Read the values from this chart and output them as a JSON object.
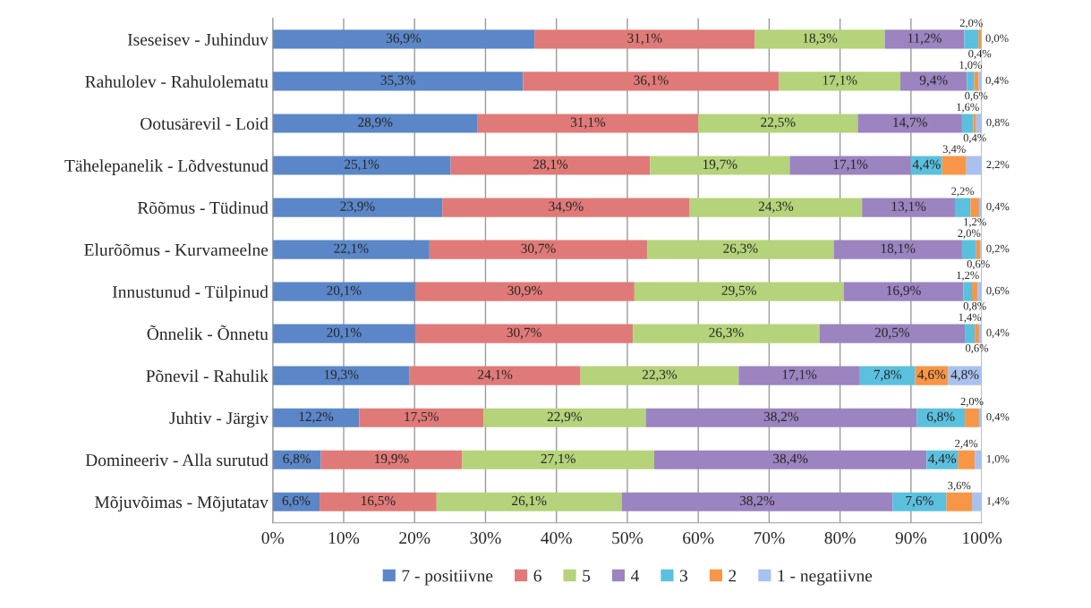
{
  "chart_data": {
    "type": "bar",
    "orientation": "horizontal",
    "stacked": true,
    "categories": [
      "Iseseisev - Juhinduv",
      "Rahulolev - Rahulolematu",
      "Ootusärevil - Loid",
      "Tähelepanelik - Lõdvestunud",
      "Rõõmus - Tüdinud",
      "Elurõõmus - Kurvameelne",
      "Innustunud - Tülpinud",
      "Õnnelik - Õnnetu",
      "Põnevil - Rahulik",
      "Juhtiv - Järgiv",
      "Domineeriv - Alla surutud",
      "Mõjuvõimas - Mõjutatav"
    ],
    "series": [
      {
        "name": "7 - positiivne",
        "color": "#5b87c8",
        "values": [
          36.9,
          35.3,
          28.9,
          25.1,
          23.9,
          22.1,
          20.1,
          20.1,
          19.3,
          12.2,
          6.8,
          6.6
        ],
        "value_labels": [
          "36,9%",
          "35,3%",
          "28,9%",
          "25,1%",
          "23,9%",
          "22,1%",
          "20,1%",
          "20,1%",
          "19,3%",
          "12,2%",
          "6,8%",
          "6,6%"
        ]
      },
      {
        "name": "6",
        "color": "#e07a78",
        "values": [
          31.1,
          36.1,
          31.1,
          28.1,
          34.9,
          30.7,
          30.9,
          30.7,
          24.1,
          17.5,
          19.9,
          16.5
        ],
        "value_labels": [
          "31,1%",
          "36,1%",
          "31,1%",
          "28,1%",
          "34,9%",
          "30,7%",
          "30,9%",
          "30,7%",
          "24,1%",
          "17,5%",
          "19,9%",
          "16,5%"
        ]
      },
      {
        "name": "5",
        "color": "#b5d37a",
        "values": [
          18.3,
          17.1,
          22.5,
          19.7,
          24.3,
          26.3,
          29.5,
          26.3,
          22.3,
          22.9,
          27.1,
          26.1
        ],
        "value_labels": [
          "18,3%",
          "17,1%",
          "22,5%",
          "19,7%",
          "24,3%",
          "26,3%",
          "29,5%",
          "26,3%",
          "22,3%",
          "22,9%",
          "27,1%",
          "26,1%"
        ]
      },
      {
        "name": "4",
        "color": "#9b84c0",
        "values": [
          11.2,
          9.4,
          14.7,
          17.1,
          13.1,
          18.1,
          16.9,
          20.5,
          17.1,
          38.2,
          38.4,
          38.2
        ],
        "value_labels": [
          "11,2%",
          "9,4%",
          "14,7%",
          "17,1%",
          "13,1%",
          "18,1%",
          "16,9%",
          "20,5%",
          "17,1%",
          "38,2%",
          "38,4%",
          "38,2%"
        ]
      },
      {
        "name": "3",
        "color": "#5bc0de",
        "values": [
          2.0,
          1.0,
          1.6,
          4.4,
          2.2,
          2.0,
          1.2,
          1.4,
          7.8,
          6.8,
          4.4,
          7.6
        ],
        "value_labels": [
          "2,0%",
          "1,0%",
          "1,6%",
          "4,4%",
          "2,2%",
          "2,0%",
          "1,2%",
          "1,4%",
          "7,8%",
          "6,8%",
          "4,4%",
          "7,6%"
        ]
      },
      {
        "name": "2",
        "color": "#f79646",
        "values": [
          0.4,
          0.6,
          0.4,
          3.4,
          1.2,
          0.6,
          0.8,
          0.6,
          4.6,
          2.0,
          2.4,
          3.6
        ],
        "value_labels": [
          "0,4%",
          "0,6%",
          "0,4%",
          "3,4%",
          "1,2%",
          "0,6%",
          "0,8%",
          "0,6%",
          "4,6%",
          "2,0%",
          "2,4%",
          "3,6%"
        ]
      },
      {
        "name": "1 - negatiivne",
        "color": "#a9c1ee",
        "values": [
          0.0,
          0.4,
          0.8,
          2.2,
          0.4,
          0.2,
          0.6,
          0.4,
          4.8,
          0.4,
          1.0,
          1.4
        ],
        "value_labels": [
          "0,0%",
          "0,4%",
          "0,8%",
          "2,2%",
          "0,4%",
          "0,2%",
          "0,6%",
          "0,4%",
          "4,8%",
          "0,4%",
          "1,0%",
          "1,4%"
        ]
      }
    ],
    "xlim": [
      0,
      100
    ],
    "xticks": [
      {
        "value": 0,
        "label": "0%"
      },
      {
        "value": 10,
        "label": "10%"
      },
      {
        "value": 20,
        "label": "20%"
      },
      {
        "value": 30,
        "label": "30%"
      },
      {
        "value": 40,
        "label": "40%"
      },
      {
        "value": 50,
        "label": "50%"
      },
      {
        "value": 60,
        "label": "60%"
      },
      {
        "value": 70,
        "label": "70%"
      },
      {
        "value": 80,
        "label": "80%"
      },
      {
        "value": 90,
        "label": "90%"
      },
      {
        "value": 100,
        "label": "100%"
      }
    ],
    "grid": "x",
    "legend": "bottom"
  }
}
